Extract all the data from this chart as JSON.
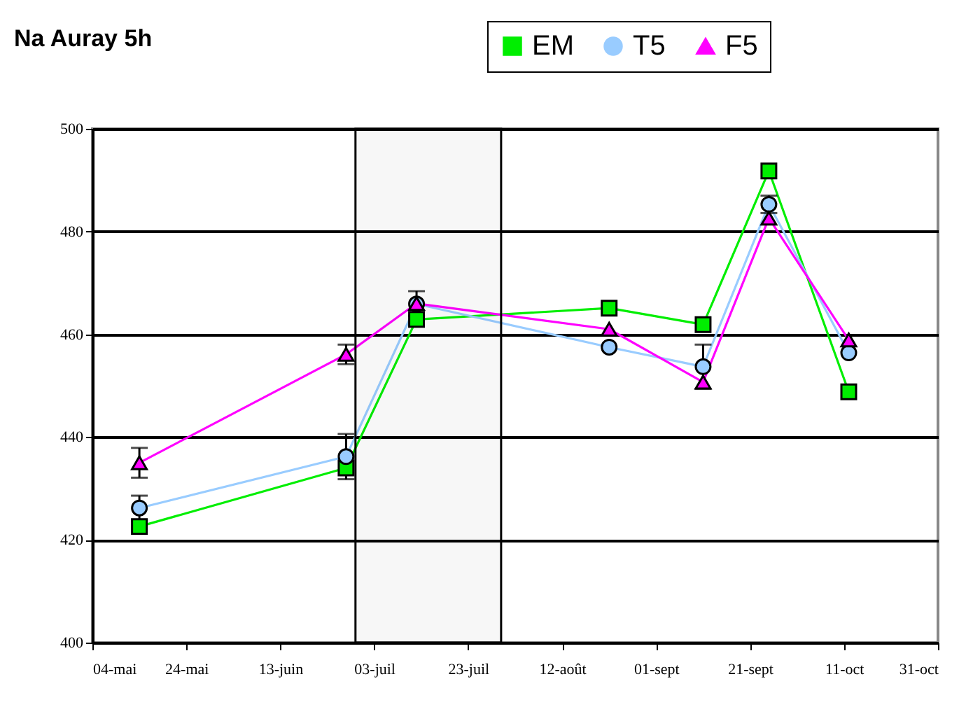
{
  "chart_data": {
    "type": "line",
    "title": "Na Auray 5h",
    "x": [
      "--05-14",
      "--06-27",
      "--07-12",
      "--08-22",
      "--09-11",
      "--09-25",
      "--10-12"
    ],
    "series": [
      {
        "name": "EM",
        "color": "#00ee00",
        "marker": "square",
        "values": [
          422.6,
          434,
          462.9,
          465.1,
          461.9,
          491.8,
          448.8
        ]
      },
      {
        "name": "T5",
        "color": "#99ccff",
        "marker": "circle",
        "values": [
          426.2,
          436.2,
          465.9,
          457.5,
          453.7,
          485.3,
          456.4
        ],
        "errors": [
          2.4,
          4.4,
          null,
          null,
          4.3,
          1.7,
          null
        ]
      },
      {
        "name": "F5",
        "color": "#ff00ff",
        "marker": "triangle",
        "values": [
          435,
          456.1,
          466,
          461,
          450.7,
          482.6,
          458.9
        ],
        "errors": [
          2.9,
          1.9,
          2.4,
          null,
          null,
          null,
          null
        ]
      }
    ],
    "bands": [
      {
        "axis": "x",
        "from": "--06-29",
        "to": "--07-30",
        "color": "#000000"
      }
    ],
    "xlim": [
      "--05-04",
      "--10-31"
    ],
    "xticks": [
      {
        "value": "--05-04",
        "label": "04-mai"
      },
      {
        "value": "--05-24",
        "label": "24-mai"
      },
      {
        "value": "--06-13",
        "label": "13-juin"
      },
      {
        "value": "--07-03",
        "label": "03-juil"
      },
      {
        "value": "--07-23",
        "label": "23-juil"
      },
      {
        "value": "--08-12",
        "label": "12-août"
      },
      {
        "value": "--09-01",
        "label": "01-sept"
      },
      {
        "value": "--09-21",
        "label": "21-sept"
      },
      {
        "value": "--10-11",
        "label": "11-oct"
      },
      {
        "value": "--10-31",
        "label": "31-oct"
      }
    ],
    "ylim": [
      400,
      500
    ],
    "yticks": [
      400,
      420,
      440,
      460,
      480,
      500
    ],
    "grid": "y",
    "legend": "top right"
  }
}
